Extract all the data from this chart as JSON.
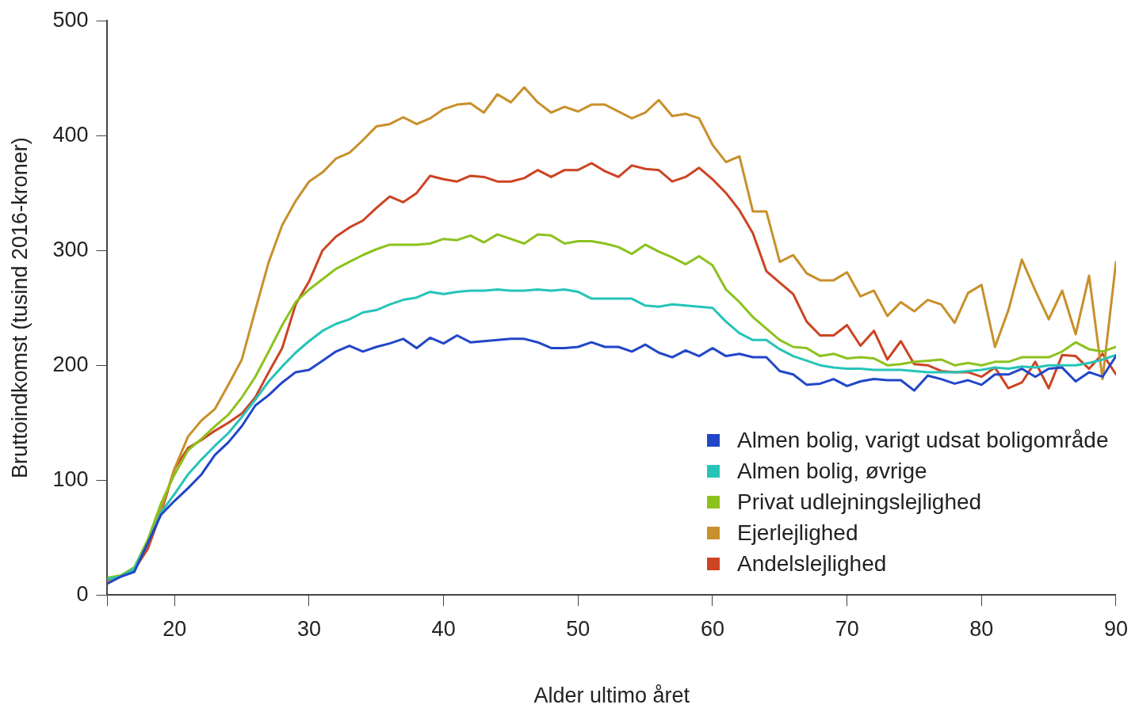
{
  "chart_data": {
    "type": "line",
    "xlabel": "Alder ultimo året",
    "ylabel": "Bruttoindkomst (tusind 2016-kroner)",
    "x": [
      15,
      16,
      17,
      18,
      19,
      20,
      21,
      22,
      23,
      24,
      25,
      26,
      27,
      28,
      29,
      30,
      31,
      32,
      33,
      34,
      35,
      36,
      37,
      38,
      39,
      40,
      41,
      42,
      43,
      44,
      45,
      46,
      47,
      48,
      49,
      50,
      51,
      52,
      53,
      54,
      55,
      56,
      57,
      58,
      59,
      60,
      61,
      62,
      63,
      64,
      65,
      66,
      67,
      68,
      69,
      70,
      71,
      72,
      73,
      74,
      75,
      76,
      77,
      78,
      79,
      80,
      81,
      82,
      83,
      84,
      85,
      86,
      87,
      88,
      89,
      90
    ],
    "xlim": [
      15,
      90
    ],
    "xticks": [
      {
        "value": 15,
        "label": null
      },
      20,
      30,
      40,
      50,
      60,
      70,
      80,
      90
    ],
    "ylim": [
      0,
      500
    ],
    "yticks": [
      0,
      100,
      200,
      300,
      400,
      500
    ],
    "grid": false,
    "legend": "bottom right",
    "marker": "none",
    "line_style": "solid",
    "series": [
      {
        "name": "Almen bolig, varigt udsat boligområde",
        "color": "#2246c8",
        "values": [
          10,
          16,
          20,
          45,
          70,
          82,
          93,
          105,
          122,
          133,
          147,
          165,
          174,
          185,
          194,
          196,
          204,
          212,
          217,
          212,
          216,
          219,
          223,
          215,
          224,
          219,
          226,
          220,
          221,
          222,
          223,
          223,
          220,
          215,
          215,
          216,
          220,
          216,
          216,
          212,
          218,
          211,
          207,
          213,
          208,
          215,
          208,
          210,
          207,
          207,
          195,
          192,
          183,
          184,
          188,
          182,
          186,
          188,
          187,
          187,
          178,
          191,
          188,
          184,
          187,
          183,
          192,
          192,
          197,
          190,
          197,
          198,
          186,
          194,
          190,
          208
        ]
      },
      {
        "name": "Almen bolig, øvrige",
        "color": "#26c4b8",
        "values": [
          14,
          16,
          23,
          45,
          72,
          88,
          105,
          118,
          130,
          141,
          155,
          170,
          186,
          199,
          211,
          221,
          230,
          236,
          240,
          246,
          248,
          253,
          257,
          259,
          264,
          262,
          264,
          265,
          265,
          266,
          265,
          265,
          266,
          265,
          266,
          264,
          258,
          258,
          258,
          258,
          252,
          251,
          253,
          252,
          251,
          250,
          238,
          228,
          222,
          222,
          214,
          208,
          204,
          200,
          198,
          197,
          197,
          196,
          196,
          196,
          195,
          194,
          194,
          194,
          195,
          196,
          198,
          197,
          199,
          198,
          200,
          200,
          200,
          202,
          205,
          209
        ]
      },
      {
        "name": "Privat udlejningslejlighed",
        "color": "#8cc21e",
        "values": [
          15,
          17,
          24,
          48,
          80,
          105,
          126,
          136,
          147,
          157,
          172,
          190,
          212,
          235,
          255,
          266,
          275,
          284,
          290,
          296,
          301,
          305,
          305,
          305,
          306,
          310,
          309,
          313,
          307,
          314,
          310,
          306,
          314,
          313,
          306,
          308,
          308,
          306,
          303,
          297,
          305,
          299,
          294,
          288,
          295,
          287,
          266,
          255,
          242,
          232,
          222,
          216,
          215,
          208,
          210,
          206,
          207,
          206,
          200,
          201,
          203,
          204,
          205,
          200,
          202,
          200,
          203,
          203,
          207,
          207,
          207,
          212,
          220,
          214,
          212,
          216
        ]
      },
      {
        "name": "Ejerlejlighed",
        "color": "#c8902a",
        "values": [
          12,
          16,
          22,
          45,
          75,
          110,
          138,
          152,
          162,
          183,
          205,
          248,
          290,
          322,
          343,
          360,
          368,
          380,
          385,
          396,
          408,
          410,
          416,
          410,
          415,
          423,
          427,
          428,
          420,
          436,
          429,
          442,
          429,
          420,
          425,
          421,
          427,
          427,
          421,
          415,
          420,
          431,
          417,
          419,
          415,
          392,
          377,
          382,
          334,
          334,
          290,
          296,
          280,
          274,
          274,
          281,
          260,
          265,
          243,
          255,
          247,
          257,
          253,
          237,
          263,
          270,
          216,
          248,
          292,
          265,
          240,
          265,
          227,
          278,
          188,
          290
        ]
      },
      {
        "name": "Andelslejlighed",
        "color": "#cc4422",
        "values": [
          10,
          16,
          22,
          40,
          72,
          110,
          128,
          135,
          143,
          150,
          158,
          172,
          194,
          215,
          253,
          273,
          300,
          312,
          320,
          326,
          337,
          347,
          342,
          350,
          365,
          362,
          360,
          365,
          364,
          360,
          360,
          363,
          370,
          364,
          370,
          370,
          376,
          369,
          364,
          374,
          371,
          370,
          360,
          364,
          372,
          362,
          350,
          335,
          315,
          282,
          272,
          262,
          238,
          226,
          226,
          235,
          217,
          230,
          205,
          221,
          201,
          200,
          195,
          194,
          194,
          190,
          198,
          180,
          185,
          203,
          180,
          209,
          208,
          197,
          210,
          192
        ]
      }
    ]
  }
}
